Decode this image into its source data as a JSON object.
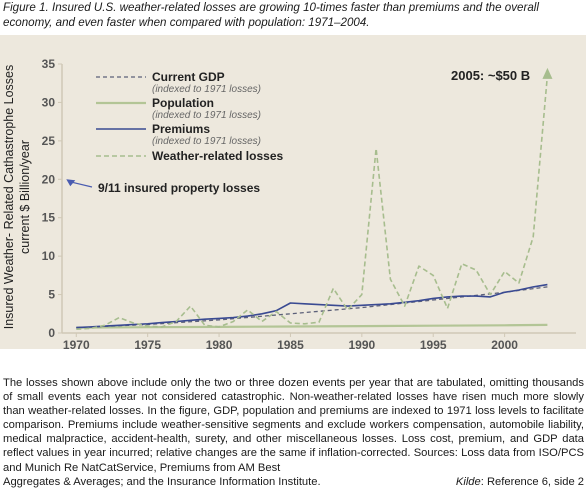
{
  "caption": "Figure 1. Insured U.S. weather-related losses are growing 10-times faster than premiums and the overall economy, and even faster when compared with population: 1971–2004.",
  "notes": {
    "body": "The losses shown above include only the two or three dozen events per year that are tabulated, omitting thousands of small events each year not considered catastrophic. Non-weather-related losses have risen much more slowly than weather-related losses. In the figure, GDP, population and premiums are indexed to 1971 loss levels to facilitate comparison. Premiums include weather-sensitive segments and exclude workers compensation, automobile liability, medical malpractice, accident-health, surety, and other miscellaneous losses. Loss cost, premium, and GDP data reflect values in year incurred; relative changes are the same if inflation-corrected. Sources: Loss data from ISO/PCS and Munich Re NatCatService, Premiums from AM Best",
    "last_line": "Aggregates & Averages; and the Insurance Information Institute.",
    "kilde_label": "Kilde",
    "kilde_ref": ": Reference 6, side 2"
  },
  "chart_data": {
    "type": "line",
    "ylabel_line1": "Insured Weather- Related Cathastrophe Losses",
    "ylabel_line2": "current $ Billion/year",
    "xlim": [
      1969,
      2005
    ],
    "ylim": [
      0,
      35
    ],
    "yticks": [
      0,
      5,
      10,
      15,
      20,
      25,
      30,
      35
    ],
    "xticks": [
      1970,
      1975,
      1980,
      1985,
      1990,
      1995,
      2000
    ],
    "grid": false,
    "legend_position": "top-left",
    "colors": {
      "plot_bg": "#ede8dd",
      "axis": "#d0c8b6",
      "gdp": "#5c6079",
      "population": "#b3c596",
      "premiums": "#3a4a92",
      "weather": "#a7bd8e",
      "annot_arrow": "#4a5cb0"
    },
    "series": [
      {
        "key": "gdp",
        "name": "Current GDP",
        "note": "(indexed to 1971 losses)",
        "x": [
          1970,
          1975,
          1980,
          1985,
          1990,
          1995,
          2000,
          2003
        ],
        "values": [
          0.7,
          1.1,
          1.7,
          2.5,
          3.3,
          4.3,
          5.3,
          6.0
        ]
      },
      {
        "key": "population",
        "name": "Population",
        "note": "(indexed to 1971 losses)",
        "x": [
          1970,
          1975,
          1980,
          1985,
          1990,
          1995,
          2000,
          2003
        ],
        "values": [
          0.7,
          0.75,
          0.8,
          0.85,
          0.9,
          0.95,
          1.0,
          1.05
        ]
      },
      {
        "key": "premiums",
        "name": "Premiums",
        "note": "(indexed to 1971 losses)",
        "x": [
          1970,
          1971,
          1972,
          1973,
          1974,
          1975,
          1976,
          1977,
          1978,
          1979,
          1980,
          1981,
          1982,
          1983,
          1984,
          1985,
          1986,
          1987,
          1988,
          1989,
          1990,
          1991,
          1992,
          1993,
          1994,
          1995,
          1996,
          1997,
          1998,
          1999,
          2000,
          2001,
          2002,
          2003
        ],
        "values": [
          0.7,
          0.8,
          0.9,
          1.0,
          1.1,
          1.2,
          1.35,
          1.5,
          1.65,
          1.8,
          1.9,
          2.0,
          2.2,
          2.5,
          2.9,
          3.9,
          3.8,
          3.7,
          3.6,
          3.5,
          3.6,
          3.7,
          3.8,
          4.0,
          4.2,
          4.5,
          4.7,
          4.8,
          4.8,
          4.7,
          5.3,
          5.6,
          6.0,
          6.3
        ]
      },
      {
        "key": "weather",
        "name": "Weather-related losses",
        "note": "",
        "x": [
          1970,
          1971,
          1972,
          1973,
          1974,
          1975,
          1976,
          1977,
          1978,
          1979,
          1980,
          1981,
          1982,
          1983,
          1984,
          1985,
          1986,
          1987,
          1988,
          1989,
          1990,
          1991,
          1992,
          1993,
          1994,
          1995,
          1996,
          1997,
          1998,
          1999,
          2000,
          2001,
          2002,
          2003
        ],
        "values": [
          0.5,
          0.6,
          1.0,
          2.0,
          1.3,
          0.9,
          0.8,
          1.5,
          3.5,
          1.0,
          0.8,
          1.5,
          3.0,
          1.5,
          2.8,
          1.3,
          1.2,
          1.4,
          5.8,
          3.0,
          5.0,
          24.0,
          7.0,
          3.5,
          8.7,
          7.5,
          3.2,
          9.0,
          8.2,
          5.0,
          8.0,
          6.5,
          12.5,
          33.5
        ]
      }
    ],
    "annotations": [
      {
        "key": "peak",
        "text": "2005: ~$50 B",
        "x": 2003,
        "y": 34.5
      },
      {
        "key": "nine_eleven",
        "text": "9/11 insured property losses",
        "x": 1969.3,
        "y": 20
      }
    ]
  }
}
